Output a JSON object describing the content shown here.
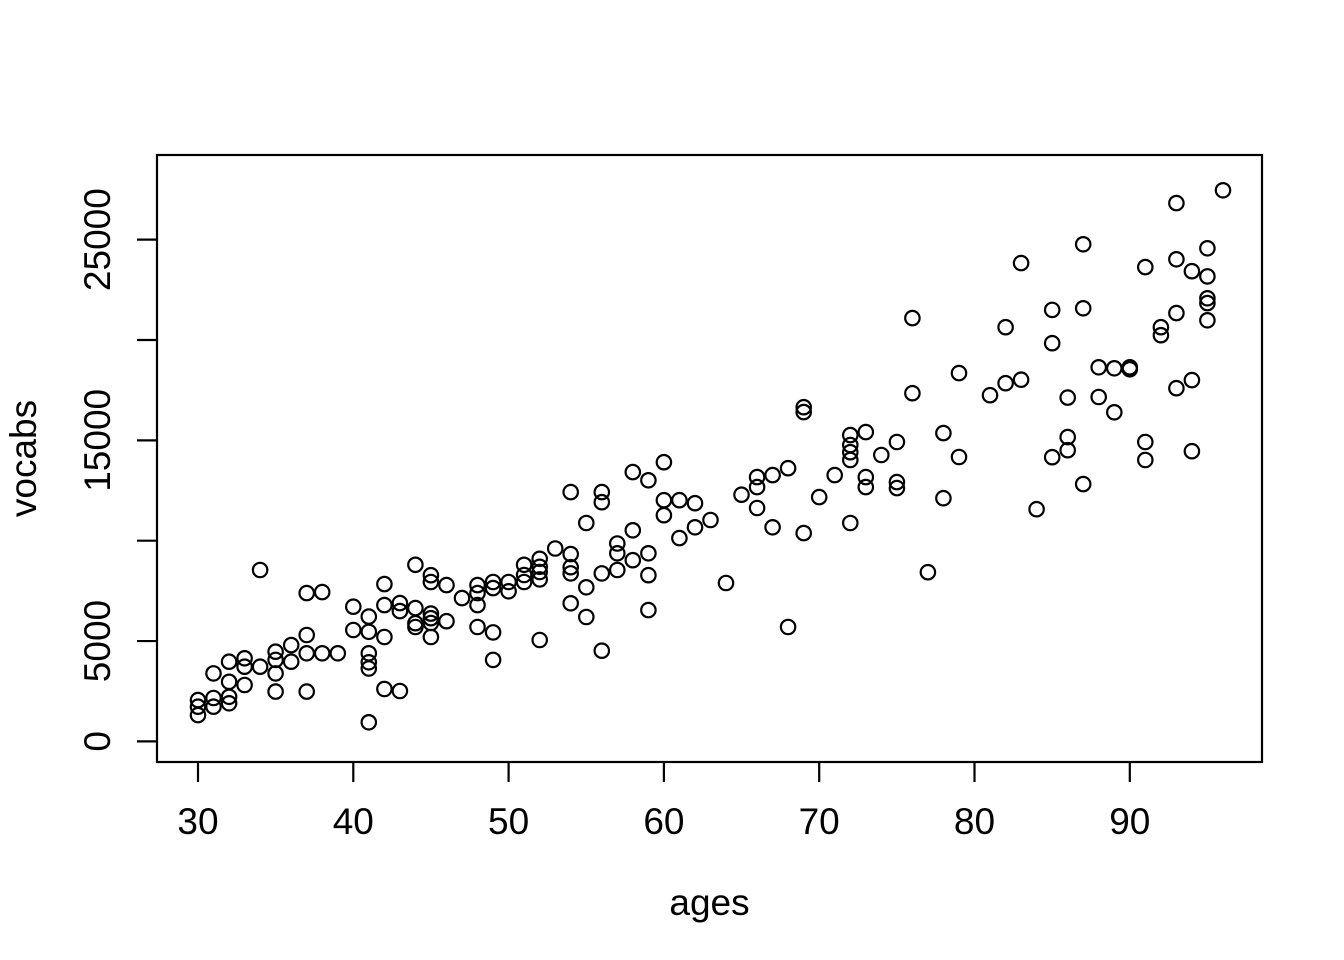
{
  "chart_data": {
    "type": "scatter",
    "title": "",
    "xlabel": "ages",
    "ylabel": "vocabs",
    "xlim": [
      27.4,
      98.6
    ],
    "ylim": [
      -1000,
      29200
    ],
    "grid": false,
    "legend": "none",
    "marker": "open-circle",
    "marker_color": "#000000",
    "background_color": "#ffffff",
    "x_ticks": [
      30,
      40,
      50,
      60,
      70,
      80,
      90
    ],
    "x_tick_labels": [
      "30",
      "40",
      "50",
      "60",
      "70",
      "80",
      "90"
    ],
    "y_ticks": [
      0,
      5000,
      10000,
      15000,
      20000,
      25000
    ],
    "y_tick_labels": [
      "0",
      "5000",
      "",
      "15000",
      "",
      "25000"
    ],
    "points": [
      [
        30,
        2060
      ],
      [
        30,
        1730
      ],
      [
        30,
        1310
      ],
      [
        31,
        2160
      ],
      [
        31,
        1730
      ],
      [
        31,
        3390
      ],
      [
        32,
        2220
      ],
      [
        32,
        1900
      ],
      [
        32,
        2970
      ],
      [
        32,
        3970
      ],
      [
        33,
        4140
      ],
      [
        33,
        3720
      ],
      [
        33,
        2810
      ],
      [
        34,
        3720
      ],
      [
        34,
        8540
      ],
      [
        35,
        4470
      ],
      [
        35,
        4060
      ],
      [
        35,
        3390
      ],
      [
        35,
        2480
      ],
      [
        36,
        4800
      ],
      [
        36,
        3970
      ],
      [
        37,
        5300
      ],
      [
        37,
        4390
      ],
      [
        37,
        2480
      ],
      [
        37,
        7390
      ],
      [
        38,
        4390
      ],
      [
        38,
        7440
      ],
      [
        39,
        4390
      ],
      [
        40,
        5550
      ],
      [
        40,
        6710
      ],
      [
        41,
        6220
      ],
      [
        41,
        5460
      ],
      [
        41,
        4390
      ],
      [
        41,
        3940
      ],
      [
        41,
        3630
      ],
      [
        41,
        950
      ],
      [
        42,
        7840
      ],
      [
        42,
        6790
      ],
      [
        42,
        5200
      ],
      [
        42,
        2610
      ],
      [
        43,
        6890
      ],
      [
        43,
        6490
      ],
      [
        43,
        2510
      ],
      [
        44,
        8800
      ],
      [
        44,
        6640
      ],
      [
        44,
        5890
      ],
      [
        44,
        5700
      ],
      [
        45,
        8280
      ],
      [
        45,
        7940
      ],
      [
        45,
        6370
      ],
      [
        45,
        6140
      ],
      [
        45,
        5900
      ],
      [
        45,
        5200
      ],
      [
        46,
        7790
      ],
      [
        46,
        5990
      ],
      [
        47,
        7140
      ],
      [
        48,
        7790
      ],
      [
        48,
        7390
      ],
      [
        48,
        6790
      ],
      [
        48,
        5700
      ],
      [
        49,
        7940
      ],
      [
        49,
        7640
      ],
      [
        49,
        5430
      ],
      [
        49,
        4060
      ],
      [
        50,
        7940
      ],
      [
        50,
        7480
      ],
      [
        51,
        8800
      ],
      [
        51,
        8290
      ],
      [
        51,
        7940
      ],
      [
        52,
        9100
      ],
      [
        52,
        8700
      ],
      [
        52,
        8440
      ],
      [
        52,
        8070
      ],
      [
        52,
        5050
      ],
      [
        53,
        9610
      ],
      [
        54,
        12420
      ],
      [
        54,
        9330
      ],
      [
        54,
        8680
      ],
      [
        54,
        8370
      ],
      [
        54,
        6880
      ],
      [
        55,
        10880
      ],
      [
        55,
        7680
      ],
      [
        55,
        6200
      ],
      [
        56,
        12420
      ],
      [
        56,
        11920
      ],
      [
        56,
        8370
      ],
      [
        56,
        4520
      ],
      [
        57,
        9860
      ],
      [
        57,
        9370
      ],
      [
        57,
        8540
      ],
      [
        58,
        13420
      ],
      [
        58,
        10520
      ],
      [
        58,
        9030
      ],
      [
        59,
        13010
      ],
      [
        59,
        9370
      ],
      [
        59,
        8280
      ],
      [
        59,
        6540
      ],
      [
        60,
        13910
      ],
      [
        60,
        12020
      ],
      [
        60,
        11270
      ],
      [
        61,
        12020
      ],
      [
        61,
        10130
      ],
      [
        62,
        11870
      ],
      [
        62,
        10670
      ],
      [
        63,
        11030
      ],
      [
        64,
        7890
      ],
      [
        65,
        12290
      ],
      [
        66,
        13170
      ],
      [
        66,
        12670
      ],
      [
        66,
        11630
      ],
      [
        67,
        13270
      ],
      [
        67,
        10670
      ],
      [
        68,
        13610
      ],
      [
        68,
        5700
      ],
      [
        69,
        16650
      ],
      [
        69,
        16410
      ],
      [
        69,
        10380
      ],
      [
        70,
        12170
      ],
      [
        71,
        13270
      ],
      [
        72,
        15260
      ],
      [
        72,
        14770
      ],
      [
        72,
        14410
      ],
      [
        72,
        14020
      ],
      [
        72,
        10880
      ],
      [
        73,
        15410
      ],
      [
        73,
        13170
      ],
      [
        73,
        12670
      ],
      [
        74,
        14270
      ],
      [
        75,
        14920
      ],
      [
        75,
        12920
      ],
      [
        75,
        12620
      ],
      [
        76,
        21090
      ],
      [
        76,
        17350
      ],
      [
        77,
        8430
      ],
      [
        78,
        15360
      ],
      [
        78,
        12120
      ],
      [
        79,
        18350
      ],
      [
        79,
        14170
      ],
      [
        81,
        17250
      ],
      [
        82,
        20640
      ],
      [
        82,
        17850
      ],
      [
        83,
        23830
      ],
      [
        83,
        18020
      ],
      [
        84,
        11570
      ],
      [
        85,
        21500
      ],
      [
        85,
        19840
      ],
      [
        85,
        14160
      ],
      [
        86,
        17130
      ],
      [
        86,
        15160
      ],
      [
        86,
        14510
      ],
      [
        87,
        24770
      ],
      [
        87,
        21580
      ],
      [
        87,
        12820
      ],
      [
        88,
        18640
      ],
      [
        88,
        17160
      ],
      [
        89,
        18590
      ],
      [
        89,
        16400
      ],
      [
        90,
        18640
      ],
      [
        90,
        18540
      ],
      [
        91,
        23630
      ],
      [
        91,
        14920
      ],
      [
        91,
        14020
      ],
      [
        92,
        20640
      ],
      [
        92,
        20240
      ],
      [
        93,
        26820
      ],
      [
        93,
        24020
      ],
      [
        93,
        21340
      ],
      [
        93,
        17600
      ],
      [
        94,
        23430
      ],
      [
        94,
        18000
      ],
      [
        94,
        14460
      ],
      [
        95,
        24570
      ],
      [
        95,
        23170
      ],
      [
        95,
        22080
      ],
      [
        95,
        21840
      ],
      [
        95,
        20980
      ],
      [
        96,
        27460
      ]
    ]
  }
}
